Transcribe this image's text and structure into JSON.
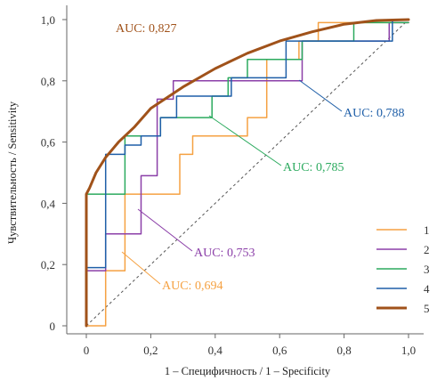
{
  "chart_data": {
    "type": "line",
    "xlabel": "1 – Специфичность / 1 – Specificity",
    "ylabel": "Чувствительность / Sensitivity",
    "xlim": [
      0,
      1
    ],
    "ylim": [
      0,
      1
    ],
    "x_ticks": [
      "0",
      "0,2",
      "0,4",
      "0,6",
      "0,8",
      "1,0"
    ],
    "y_ticks": [
      "0",
      "0,2",
      "0,4",
      "0,6",
      "0,8",
      "1,0"
    ],
    "grid": false,
    "legend_position": "bottom-right",
    "reference_line": {
      "from": [
        0,
        0
      ],
      "to": [
        1,
        1
      ],
      "style": "dashed",
      "color": "#555555"
    },
    "series": [
      {
        "name": "1",
        "color": "#F5A142",
        "points": [
          [
            0,
            0
          ],
          [
            0.06,
            0
          ],
          [
            0.06,
            0.18
          ],
          [
            0.12,
            0.18
          ],
          [
            0.12,
            0.43
          ],
          [
            0.29,
            0.43
          ],
          [
            0.29,
            0.56
          ],
          [
            0.33,
            0.56
          ],
          [
            0.33,
            0.62
          ],
          [
            0.5,
            0.62
          ],
          [
            0.5,
            0.68
          ],
          [
            0.56,
            0.68
          ],
          [
            0.56,
            0.87
          ],
          [
            0.66,
            0.87
          ],
          [
            0.66,
            0.93
          ],
          [
            0.72,
            0.93
          ],
          [
            0.72,
            0.99
          ],
          [
            1,
            0.99
          ]
        ],
        "auc_label": "AUC: 0,694"
      },
      {
        "name": "2",
        "color": "#8B3FA8",
        "points": [
          [
            0,
            0
          ],
          [
            0,
            0.18
          ],
          [
            0.06,
            0.18
          ],
          [
            0.06,
            0.3
          ],
          [
            0.17,
            0.3
          ],
          [
            0.17,
            0.49
          ],
          [
            0.22,
            0.49
          ],
          [
            0.22,
            0.74
          ],
          [
            0.27,
            0.74
          ],
          [
            0.27,
            0.8
          ],
          [
            0.67,
            0.8
          ],
          [
            0.67,
            0.93
          ],
          [
            0.94,
            0.93
          ],
          [
            0.94,
            0.99
          ],
          [
            1,
            0.99
          ]
        ],
        "auc_label": "AUC: 0,753"
      },
      {
        "name": "3",
        "color": "#2BAA5E",
        "points": [
          [
            0,
            0
          ],
          [
            0,
            0.43
          ],
          [
            0.12,
            0.43
          ],
          [
            0.12,
            0.62
          ],
          [
            0.23,
            0.62
          ],
          [
            0.23,
            0.68
          ],
          [
            0.39,
            0.68
          ],
          [
            0.39,
            0.75
          ],
          [
            0.44,
            0.75
          ],
          [
            0.44,
            0.81
          ],
          [
            0.5,
            0.81
          ],
          [
            0.5,
            0.87
          ],
          [
            0.67,
            0.87
          ],
          [
            0.67,
            0.93
          ],
          [
            0.83,
            0.93
          ],
          [
            0.83,
            0.99
          ],
          [
            1,
            0.99
          ]
        ],
        "auc_label": "AUC: 0,785"
      },
      {
        "name": "4",
        "color": "#1F5FA8",
        "points": [
          [
            0,
            0
          ],
          [
            0,
            0.19
          ],
          [
            0.06,
            0.19
          ],
          [
            0.06,
            0.56
          ],
          [
            0.12,
            0.56
          ],
          [
            0.12,
            0.59
          ],
          [
            0.17,
            0.59
          ],
          [
            0.17,
            0.62
          ],
          [
            0.23,
            0.62
          ],
          [
            0.23,
            0.68
          ],
          [
            0.28,
            0.68
          ],
          [
            0.28,
            0.75
          ],
          [
            0.45,
            0.75
          ],
          [
            0.45,
            0.81
          ],
          [
            0.62,
            0.81
          ],
          [
            0.62,
            0.93
          ],
          [
            0.95,
            0.93
          ],
          [
            0.95,
            1
          ],
          [
            1,
            1
          ]
        ],
        "auc_label": "AUC: 0,788"
      },
      {
        "name": "5",
        "color": "#A0521A",
        "points": [
          [
            0,
            0
          ],
          [
            0,
            0.43
          ],
          [
            0.01,
            0.45
          ],
          [
            0.03,
            0.5
          ],
          [
            0.06,
            0.55
          ],
          [
            0.1,
            0.6
          ],
          [
            0.15,
            0.65
          ],
          [
            0.2,
            0.71
          ],
          [
            0.3,
            0.78
          ],
          [
            0.4,
            0.84
          ],
          [
            0.5,
            0.89
          ],
          [
            0.6,
            0.93
          ],
          [
            0.7,
            0.96
          ],
          [
            0.8,
            0.985
          ],
          [
            0.9,
            0.997
          ],
          [
            1,
            1
          ]
        ],
        "auc_label": "AUC: 0,827"
      }
    ]
  }
}
